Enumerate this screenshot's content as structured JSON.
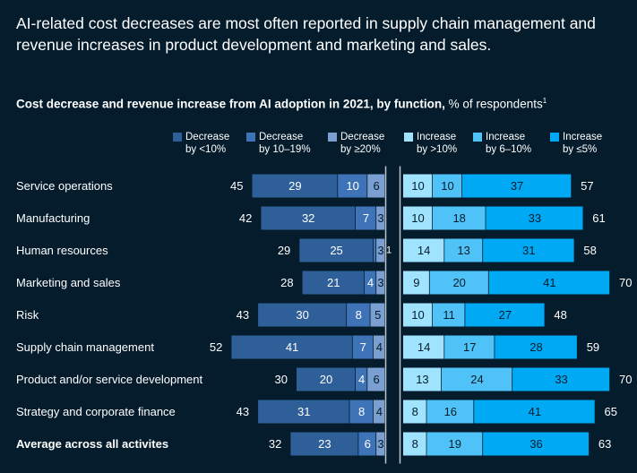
{
  "headline": "AI-related cost decreases are most often reported in supply chain management and revenue increases in product development and marketing and sales.",
  "subtitle": {
    "bold": "Cost decrease and revenue increase from AI adoption in 2021, by function,",
    "rest": " % of respondents",
    "footnote": "1"
  },
  "legend": [
    {
      "line1": "Decrease",
      "line2": "by <10%",
      "color": "#2f5f99"
    },
    {
      "line1": "Decrease",
      "line2": "by 10–19%",
      "color": "#3e73b8"
    },
    {
      "line1": "Decrease",
      "line2": "by ≥20%",
      "color": "#7a9fd0"
    },
    {
      "line1": "Increase",
      "line2": "by >10%",
      "color": "#9fe3ff"
    },
    {
      "line1": "Increase",
      "line2": "by 6–10%",
      "color": "#4fc3f7"
    },
    {
      "line1": "Increase",
      "line2": "by ≤5%",
      "color": "#00a9f4"
    }
  ],
  "colors": {
    "background": "#051c2c",
    "dec_lt10": "#2f5f99",
    "dec_10_19": "#3e73b8",
    "dec_ge20": "#7a9fd0",
    "inc_gt10": "#9fe3ff",
    "inc_6_10": "#4fc3f7",
    "inc_le5": "#00a9f4",
    "axis": "#b9c4cc"
  },
  "chart_data": {
    "type": "bar",
    "orientation": "horizontal-diverging",
    "categories": [
      "Service operations",
      "Manufacturing",
      "Human resources",
      "Marketing and sales",
      "Risk",
      "Supply chain management",
      "Product and/or service development",
      "Strategy and corporate finance",
      "Average across all activites"
    ],
    "bold_categories": [
      "Average across all activites"
    ],
    "decrease_series": [
      {
        "name": "Decrease by ≥20%",
        "values": [
          6,
          3,
          3,
          3,
          5,
          4,
          6,
          4,
          3
        ]
      },
      {
        "name": "Decrease by 10–19%",
        "values": [
          10,
          7,
          1,
          4,
          8,
          7,
          4,
          8,
          6
        ]
      },
      {
        "name": "Decrease by <10%",
        "values": [
          29,
          32,
          25,
          21,
          30,
          41,
          20,
          31,
          23
        ]
      }
    ],
    "decrease_labels": [
      [
        "6",
        "10",
        "29"
      ],
      [
        "3",
        "7",
        "32"
      ],
      [
        "3",
        "",
        "25"
      ],
      [
        "3",
        "4",
        "21"
      ],
      [
        "5",
        "8",
        "30"
      ],
      [
        "4",
        "7",
        "41"
      ],
      [
        "6",
        "4",
        "20"
      ],
      [
        "4",
        "8",
        "31"
      ],
      [
        "3",
        "6",
        "23"
      ]
    ],
    "outside_decrease_labels": [
      "",
      "",
      "1",
      "",
      "",
      "",
      "",
      "",
      ""
    ],
    "decrease_totals": [
      45,
      42,
      29,
      28,
      43,
      52,
      30,
      43,
      32
    ],
    "increase_series": [
      {
        "name": "Increase by >10%",
        "values": [
          10,
          10,
          14,
          9,
          10,
          14,
          13,
          8,
          8
        ]
      },
      {
        "name": "Increase by 6–10%",
        "values": [
          10,
          18,
          13,
          20,
          11,
          17,
          24,
          16,
          19
        ]
      },
      {
        "name": "Increase by ≤5%",
        "values": [
          37,
          33,
          31,
          41,
          27,
          28,
          33,
          41,
          36
        ]
      }
    ],
    "increase_totals": [
      57,
      61,
      58,
      70,
      48,
      59,
      70,
      65,
      63
    ],
    "unit": "% of respondents"
  }
}
